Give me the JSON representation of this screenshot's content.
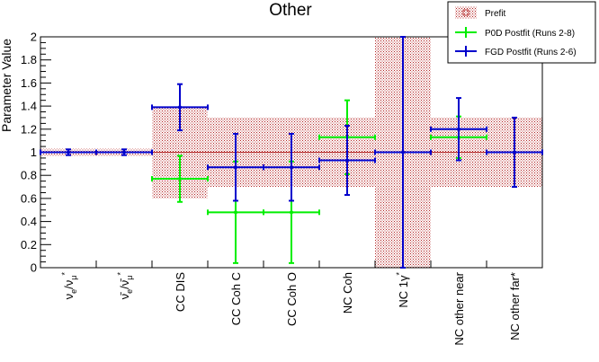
{
  "chart_data": {
    "type": "scatter",
    "title": "Other",
    "ylabel": "Parameter Value",
    "xlabel": "",
    "ylim": [
      0,
      2
    ],
    "yticks": [
      "0",
      "0.2",
      "0.4",
      "0.6",
      "0.8",
      "1",
      "1.2",
      "1.4",
      "1.6",
      "1.8",
      "2"
    ],
    "categories": [
      {
        "label": "νe/νμ*",
        "main": "ν",
        "sub1": "e",
        "sep": "/ν",
        "sub2": "μ",
        "sup": "*"
      },
      {
        "label": "ν̄e/ν̄μ*",
        "main": "ν̄",
        "sub1": "e",
        "sep": "/ν̄",
        "sub2": "μ",
        "sup": "*"
      },
      {
        "label": "CC DIS"
      },
      {
        "label": "CC Coh C"
      },
      {
        "label": "CC Coh O"
      },
      {
        "label": "NC Coh"
      },
      {
        "label": "NC 1γ*",
        "main": "NC 1γ",
        "sup": "*"
      },
      {
        "label": "NC other near"
      },
      {
        "label": "NC other far*"
      }
    ],
    "legend": {
      "position": "top-right",
      "entries": [
        "Prefit",
        "P0D Postfit (Runs 2-8)",
        "FGD Postfit (Runs 2-6)"
      ]
    },
    "series": [
      {
        "name": "Prefit",
        "color": "#b22222",
        "style": "hatched-band",
        "values": [
          1,
          1,
          1,
          1,
          1,
          1,
          1,
          1,
          1
        ],
        "err": [
          0.03,
          0.03,
          0.4,
          0.3,
          0.3,
          0.3,
          1.0,
          0.3,
          0.3
        ]
      },
      {
        "name": "P0D Postfit (Runs 2-8)",
        "color": "#00ee00",
        "style": "errorbar",
        "values": [
          null,
          null,
          0.77,
          0.48,
          0.48,
          1.13,
          null,
          1.13,
          null
        ],
        "err": [
          null,
          null,
          0.2,
          0.44,
          0.44,
          0.32,
          null,
          0.18,
          null
        ]
      },
      {
        "name": "FGD Postfit (Runs 2-6)",
        "color": "#0000cc",
        "style": "errorbar",
        "values": [
          1.0,
          1.0,
          1.39,
          0.87,
          0.87,
          0.93,
          1.0,
          1.2,
          1.0
        ],
        "err": [
          0.025,
          0.025,
          0.2,
          0.29,
          0.29,
          0.3,
          1.0,
          0.27,
          0.3
        ]
      }
    ]
  }
}
